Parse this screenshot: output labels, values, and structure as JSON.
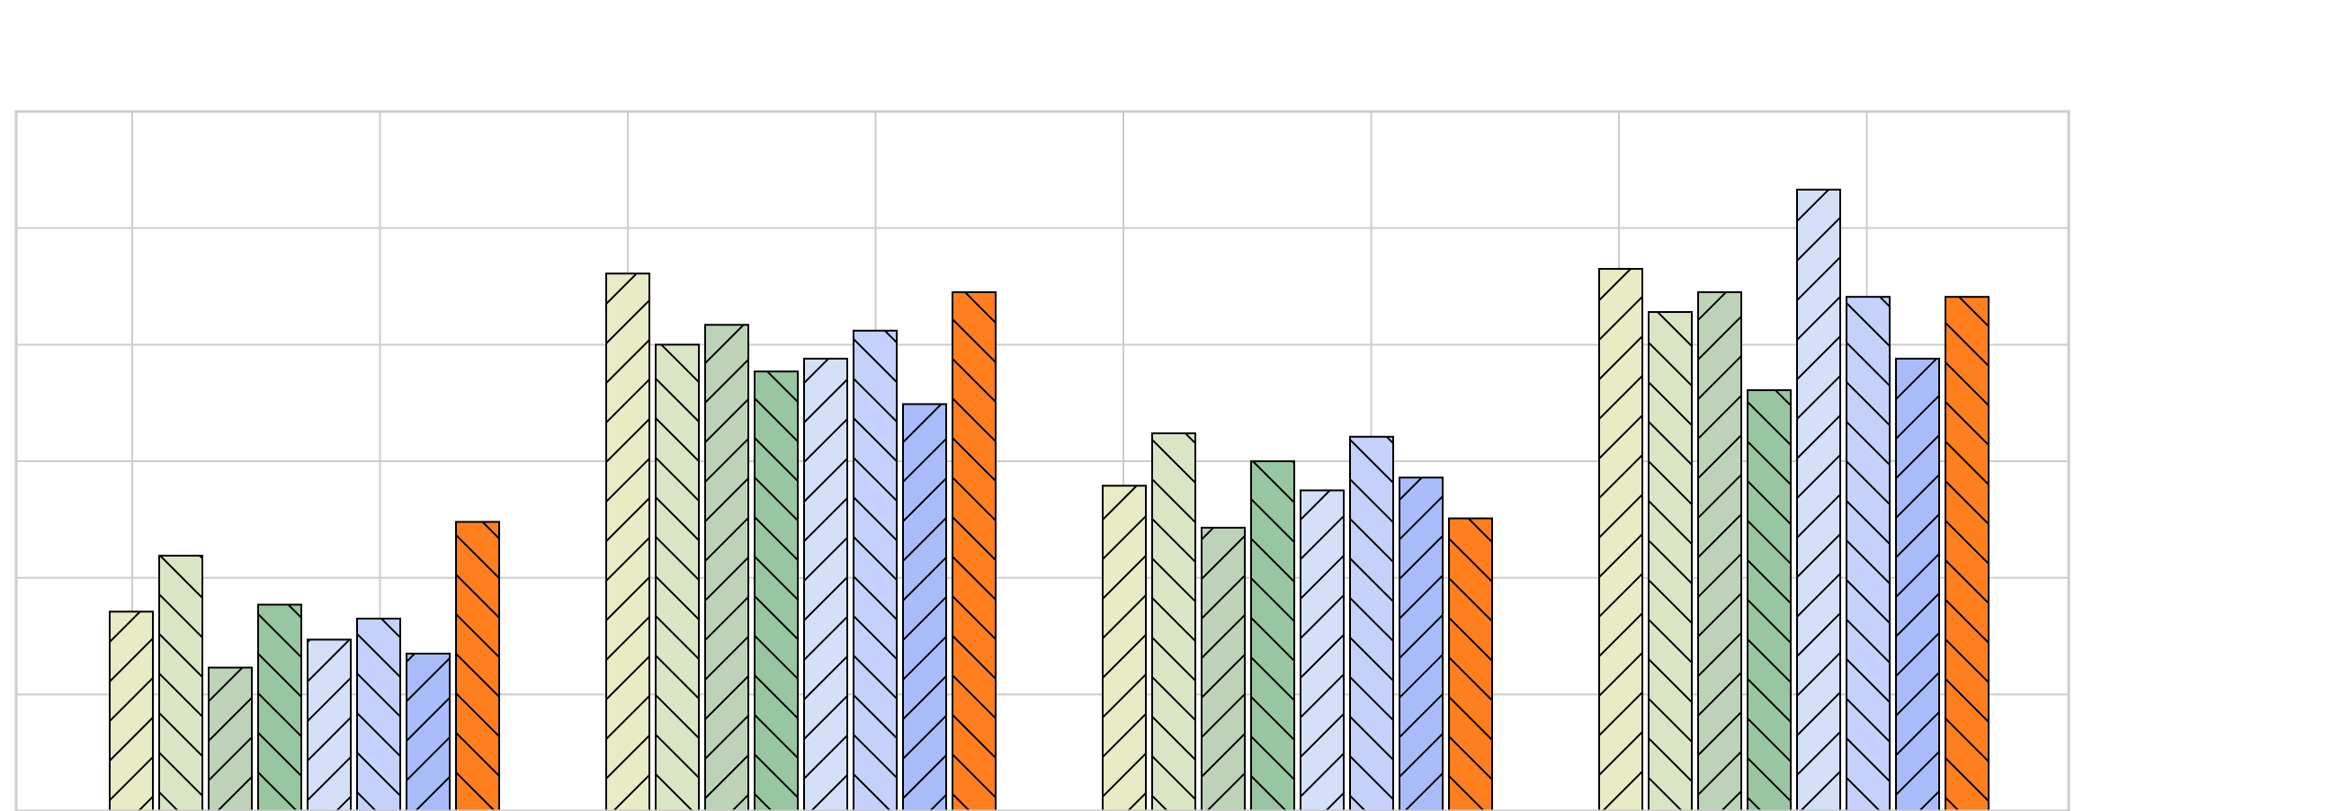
{
  "chart_data": {
    "type": "bar",
    "title": "",
    "xlabel": "",
    "ylabel": "",
    "ylim": [
      0,
      6
    ],
    "grid": true,
    "legend": "none",
    "categories": [
      "",
      "",
      "",
      ""
    ],
    "series": [
      {
        "color": "#e8ebc3",
        "hatch": "/",
        "values": [
          1.71,
          4.61,
          2.79,
          4.65
        ]
      },
      {
        "color": "#dae5c4",
        "hatch": "\\",
        "values": [
          2.19,
          4.0,
          3.24,
          4.28
        ]
      },
      {
        "color": "#bcd3b8",
        "hatch": "/",
        "values": [
          1.23,
          4.17,
          2.43,
          4.45
        ]
      },
      {
        "color": "#97c6a0",
        "hatch": "\\",
        "values": [
          1.77,
          3.77,
          3.0,
          3.61
        ]
      },
      {
        "color": "#d4e0fa",
        "hatch": "/",
        "values": [
          1.47,
          3.88,
          2.75,
          5.33
        ]
      },
      {
        "color": "#c3d1fb",
        "hatch": "\\",
        "values": [
          1.65,
          4.12,
          3.21,
          4.41
        ]
      },
      {
        "color": "#a9bcfa",
        "hatch": "/",
        "values": [
          1.35,
          3.49,
          2.86,
          3.88
        ]
      },
      {
        "color": "#ff7f1f",
        "hatch": "\\",
        "values": [
          2.48,
          4.45,
          2.51,
          4.41
        ]
      }
    ]
  }
}
